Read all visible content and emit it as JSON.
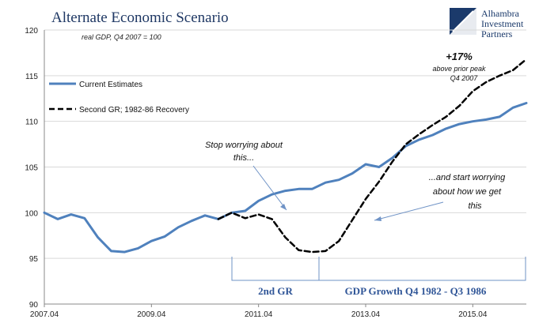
{
  "header": {
    "title": "Alternate Economic Scenario",
    "subtitle": "real GDP, Q4 2007 = 100"
  },
  "logo": {
    "line1": "Alhambra",
    "line2": "Investment",
    "line3": "Partners",
    "color": "#1b3a6b"
  },
  "chart_data": {
    "type": "line",
    "ylim": [
      90,
      120
    ],
    "yticks": [
      "90",
      "95",
      "100",
      "105",
      "110",
      "115",
      "120"
    ],
    "xticks": [
      {
        "q": 0,
        "label": "2007.04"
      },
      {
        "q": 8,
        "label": "2009.04"
      },
      {
        "q": 16,
        "label": "2011.04"
      },
      {
        "q": 24,
        "label": "2013.04"
      },
      {
        "q": 32,
        "label": "2015.04"
      }
    ],
    "quarters": 37,
    "grid": true,
    "legend_position": "top-left",
    "series": [
      {
        "name": "Current Estimates",
        "color": "#4f81bd",
        "style": "solid",
        "x": [
          0,
          1,
          2,
          3,
          4,
          5,
          6,
          7,
          8,
          9,
          10,
          11,
          12,
          13,
          14,
          15,
          16,
          17,
          18,
          19,
          20,
          21,
          22,
          23,
          24,
          25,
          26,
          27,
          28,
          29,
          30,
          31,
          32,
          33,
          34,
          35,
          36
        ],
        "values": [
          100,
          99.3,
          99.8,
          99.4,
          97.3,
          95.8,
          95.7,
          96.1,
          96.9,
          97.4,
          98.4,
          99.1,
          99.7,
          99.3,
          100,
          100.2,
          101.3,
          102,
          102.4,
          102.6,
          102.6,
          103.3,
          103.6,
          104.3,
          105.3,
          105,
          106,
          107.3,
          108,
          108.5,
          109.2,
          109.7,
          110,
          110.2,
          110.5,
          111.5,
          112
        ]
      },
      {
        "name": "Second GR; 1982-86 Recovery",
        "color": "#000000",
        "style": "dashed",
        "x": [
          13,
          14,
          15,
          16,
          17,
          18,
          19,
          20,
          21,
          22,
          23,
          24,
          25,
          26,
          27,
          28,
          29,
          30,
          31,
          32,
          33,
          34,
          35,
          36
        ],
        "values": [
          99.3,
          100,
          99.4,
          99.8,
          99.3,
          97.3,
          95.9,
          95.7,
          95.8,
          96.9,
          99.2,
          101.5,
          103.4,
          105.6,
          107.5,
          108.6,
          109.6,
          110.5,
          111.7,
          113.3,
          114.3,
          115,
          115.6,
          116.8
        ]
      }
    ],
    "annotations": {
      "peak_value": "+17%",
      "peak_line1": "above prior peak",
      "peak_line2": "Q4 2007",
      "stop_line1": "Stop worrying about",
      "stop_line2": "this...",
      "start_line1": "...and start worrying",
      "start_line2": "about how we get",
      "start_line3": "this",
      "bracket1_label": "2nd GR",
      "bracket2_label": "GDP Growth Q4 1982 - Q3 1986"
    }
  }
}
